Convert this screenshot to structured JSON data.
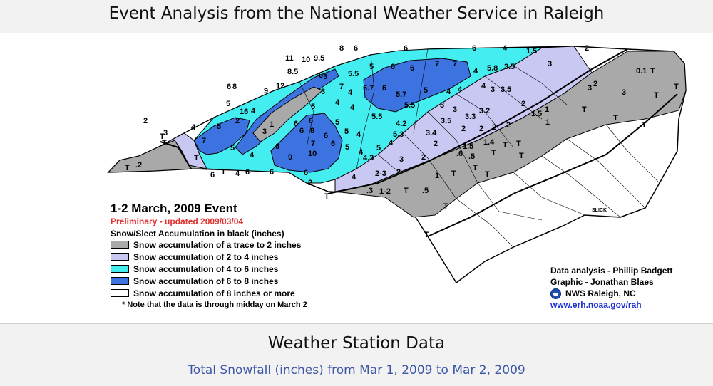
{
  "header": {
    "title": "Event Analysis from the National Weather Service in Raleigh"
  },
  "map": {
    "legend": {
      "title": "1-2 March, 2009 Event",
      "preliminary": "Preliminary - updated 2009/03/04",
      "subtitle": "Snow/Sleet Accumulation in black (inches)",
      "items": [
        {
          "label": "Snow accumulation of a trace to 2 inches",
          "color": "#a9a9a9"
        },
        {
          "label": "Snow accumulation of 2 to 4 inches",
          "color": "#c8c8f2"
        },
        {
          "label": "Snow accumulation of 4 to 6 inches",
          "color": "#44eef0"
        },
        {
          "label": "Snow accumulation of 6 to 8 inches",
          "color": "#3d73e0"
        },
        {
          "label": "Snow accumulation of 8 inches or more",
          "color": "#ffffff"
        }
      ],
      "note": "* Note that the data is through midday on March 2"
    },
    "credits": {
      "analysis": "Data analysis - Phillip Badgett",
      "graphic": "Graphic - Jonathan Blaes",
      "office": "NWS Raleigh, NC",
      "url": "www.erh.noaa.gov/rah"
    },
    "place_label": "SLICK",
    "snow_values": [
      "11",
      "10",
      "9.5",
      "8",
      "6",
      "6",
      "6",
      "4",
      "1.5",
      "2",
      "8.5",
      "6",
      "5.5",
      "5",
      "6",
      "6",
      "7",
      "7",
      "4",
      "5.8",
      "3.5",
      "3",
      "0.1",
      "T",
      "12",
      "9",
      "6",
      "8",
      "7",
      "3",
      "4",
      "6.7",
      "6",
      "5.7",
      "5",
      "4",
      "4",
      "4",
      "3",
      "3.5",
      "3",
      "2",
      "3",
      "T",
      "3",
      "16",
      "5",
      "2",
      "4",
      "1",
      "3",
      "5",
      "6",
      "6",
      "6",
      "8",
      "4",
      "4",
      "5",
      "5.5",
      "5.5",
      "3",
      "3",
      "3.3",
      "3.2",
      "2",
      "1.5",
      "1",
      "T",
      "T",
      "T",
      "4",
      "5",
      "7",
      "7",
      "10",
      "9",
      "6",
      "5",
      "6",
      "4",
      "4.2",
      "5.3",
      "3.4",
      "3.5",
      "2",
      "2",
      "2",
      "2",
      "1.4",
      "1",
      "T",
      "2",
      "3",
      "T",
      "5",
      "4",
      "6",
      "5",
      "5",
      "4",
      "4",
      "4.3",
      "3",
      "2",
      "2",
      "1.5",
      ".6",
      ".5",
      ".2",
      "T",
      "T",
      "T",
      "T",
      "T",
      "4",
      "6",
      "6",
      "6",
      "6",
      "2",
      "4",
      "2-3",
      "2",
      "1-2",
      "1",
      ".5",
      ".3",
      "T",
      "T",
      "T",
      "T",
      "T",
      "T",
      "T",
      "T",
      "T",
      "T",
      "T",
      "2"
    ]
  },
  "footer": {
    "title": "Weather Station Data",
    "subtitle": "Total Snowfall (inches) from Mar 1, 2009 to Mar 2, 2009"
  }
}
